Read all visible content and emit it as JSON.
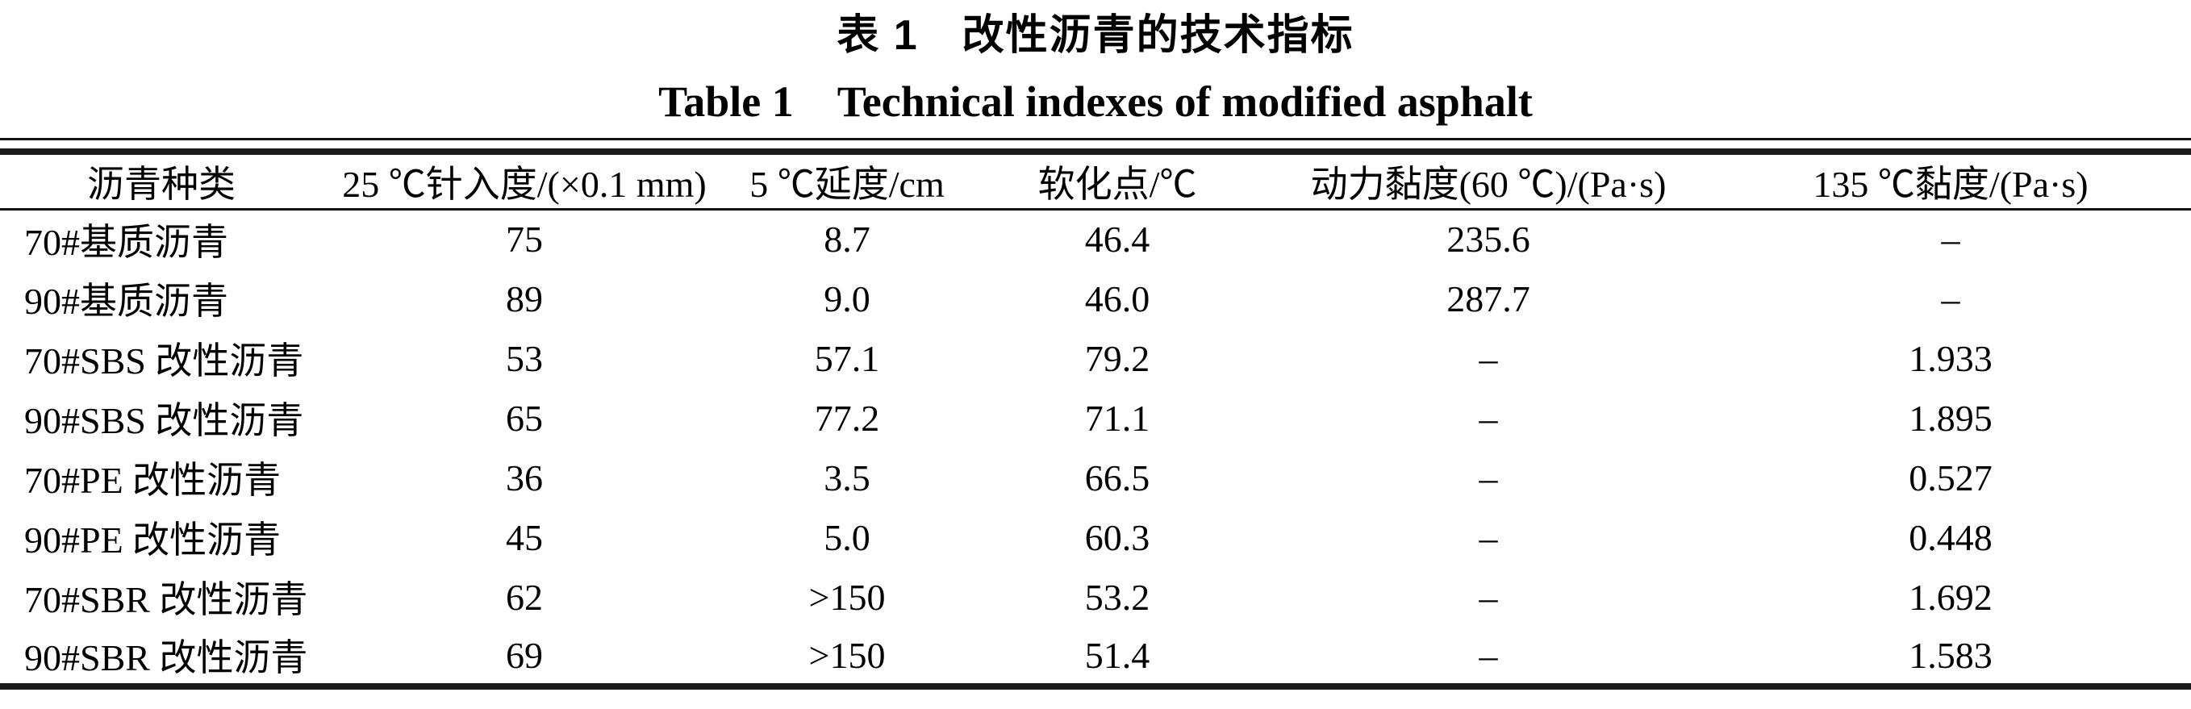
{
  "title": {
    "cn": "表 1　改性沥青的技术指标",
    "en": "Table 1　Technical indexes of modified asphalt"
  },
  "table": {
    "columns": [
      "沥青种类",
      "25 ℃针入度/(×0.1 mm)",
      "5 ℃延度/cm",
      "软化点/℃",
      "动力黏度(60 ℃)/(Pa·s)",
      "135 ℃黏度/(Pa·s)"
    ],
    "rows": [
      [
        "70#基质沥青",
        "75",
        "8.7",
        "46.4",
        "235.6",
        "–"
      ],
      [
        "90#基质沥青",
        "89",
        "9.0",
        "46.0",
        "287.7",
        "–"
      ],
      [
        "70#SBS 改性沥青",
        "53",
        "57.1",
        "79.2",
        "–",
        "1.933"
      ],
      [
        "90#SBS 改性沥青",
        "65",
        "77.2",
        "71.1",
        "–",
        "1.895"
      ],
      [
        "70#PE 改性沥青",
        "36",
        "3.5",
        "66.5",
        "–",
        "0.527"
      ],
      [
        "90#PE 改性沥青",
        "45",
        "5.0",
        "60.3",
        "–",
        "0.448"
      ],
      [
        "70#SBR 改性沥青",
        "62",
        ">150",
        "53.2",
        "–",
        "1.692"
      ],
      [
        "90#SBR 改性沥青",
        "69",
        ">150",
        "51.4",
        "–",
        "1.583"
      ]
    ]
  },
  "colors": {
    "text": "#000000",
    "background": "#ffffff",
    "rule": "#1a1a1a"
  }
}
